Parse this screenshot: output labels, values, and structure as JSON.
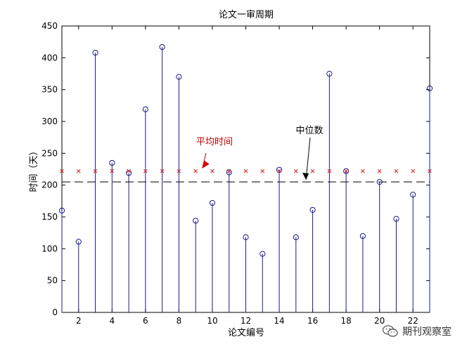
{
  "chart_data": {
    "type": "stem",
    "title": "论文一审周期",
    "xlabel": "论文编号",
    "ylabel": "时间（天）",
    "xlim": [
      1,
      23
    ],
    "ylim": [
      0,
      450
    ],
    "xticks": [
      2,
      4,
      6,
      8,
      10,
      12,
      14,
      16,
      18,
      20,
      22
    ],
    "yticks": [
      0,
      50,
      100,
      150,
      200,
      250,
      300,
      350,
      400,
      450
    ],
    "grid": false,
    "colors": {
      "stem": "#1a1a8c",
      "mean": "#d62020",
      "median": "#000000",
      "mean_label": "#c00000"
    },
    "series": [
      {
        "x": [
          1,
          2,
          3,
          4,
          5,
          6,
          7,
          8,
          9,
          10,
          11,
          12,
          13,
          14,
          15,
          16,
          17,
          18,
          19,
          20,
          21,
          22,
          23
        ],
        "values": [
          160,
          111,
          408,
          235,
          219,
          319,
          417,
          370,
          144,
          172,
          220,
          118,
          92,
          224,
          118,
          161,
          375,
          222,
          120,
          205,
          147,
          185,
          352
        ]
      }
    ],
    "reference_lines": [
      {
        "value": 222,
        "style": "red x markers",
        "label": "平均时间"
      },
      {
        "value": 205,
        "style": "black dashed",
        "label": "中位数"
      }
    ],
    "annotations": [
      {
        "text": "平均时间",
        "points_to": [
          9.4,
          222
        ]
      },
      {
        "text": "中位数",
        "points_to": [
          15.6,
          205
        ]
      }
    ]
  },
  "watermark": {
    "text": "期刊观察室",
    "icon": "wechat-icon"
  }
}
